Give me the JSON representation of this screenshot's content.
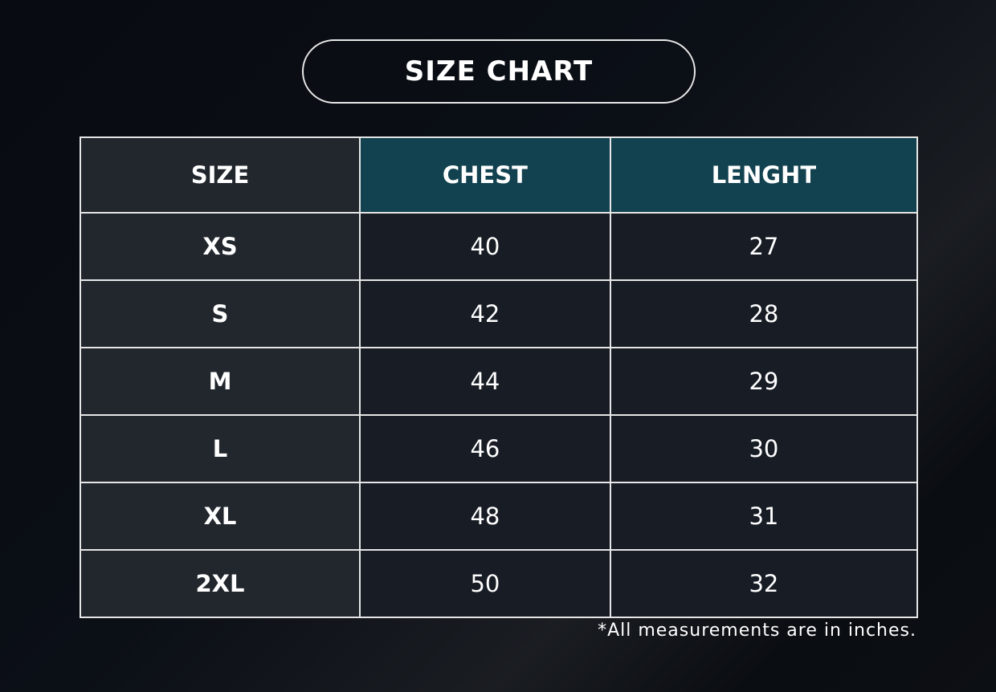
{
  "title": "SIZE CHART",
  "colors": {
    "header_accent": "#12414f",
    "size_column": "#21272d",
    "body_cells": "#171c25",
    "background": "#0a0d13"
  },
  "table": {
    "headers": [
      "SIZE",
      "CHEST",
      "LENGHT"
    ],
    "rows": [
      [
        "XS",
        "40",
        "27"
      ],
      [
        "S",
        "42",
        "28"
      ],
      [
        "M",
        "44",
        "29"
      ],
      [
        "L",
        "46",
        "30"
      ],
      [
        "XL",
        "48",
        "31"
      ],
      [
        "2XL",
        "50",
        "32"
      ]
    ]
  },
  "note": "*All measurements are in inches."
}
